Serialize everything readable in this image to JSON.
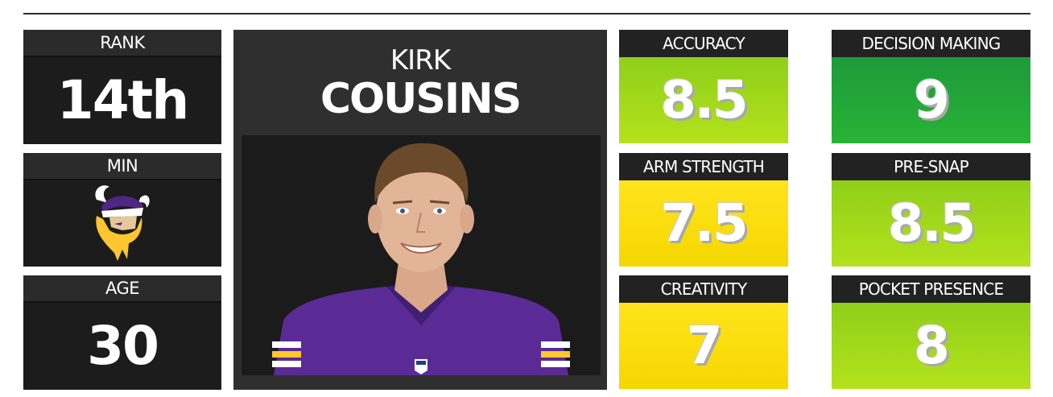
{
  "left_cards": {
    "rank": {
      "label": "RANK",
      "value": "14th"
    },
    "team": {
      "label": "MIN",
      "icon": "vikings-logo-icon"
    },
    "age": {
      "label": "AGE",
      "value": "30"
    }
  },
  "player": {
    "first_name": "KIRK",
    "last_name": "COUSINS",
    "photo_icon": "player-headshot"
  },
  "ratings": [
    {
      "label": "ACCURACY",
      "value": "8.5",
      "color": "#a6dc1c"
    },
    {
      "label": "DECISION MAKING",
      "value": "9",
      "color": "#22a838"
    },
    {
      "label": "ARM STRENGTH",
      "value": "7.5",
      "color": "#fce10f"
    },
    {
      "label": "PRE-SNAP",
      "value": "8.5",
      "color": "#a6dc1c"
    },
    {
      "label": "CREATIVITY",
      "value": "7",
      "color": "#fce10f"
    },
    {
      "label": "POCKET PRESENCE",
      "value": "8",
      "color": "#a6dc1c"
    }
  ],
  "colors": {
    "dark": "#1c1c1c",
    "header": "#2b2b2b",
    "vikings_purple": "#4f2683",
    "vikings_gold": "#ffc62f"
  }
}
